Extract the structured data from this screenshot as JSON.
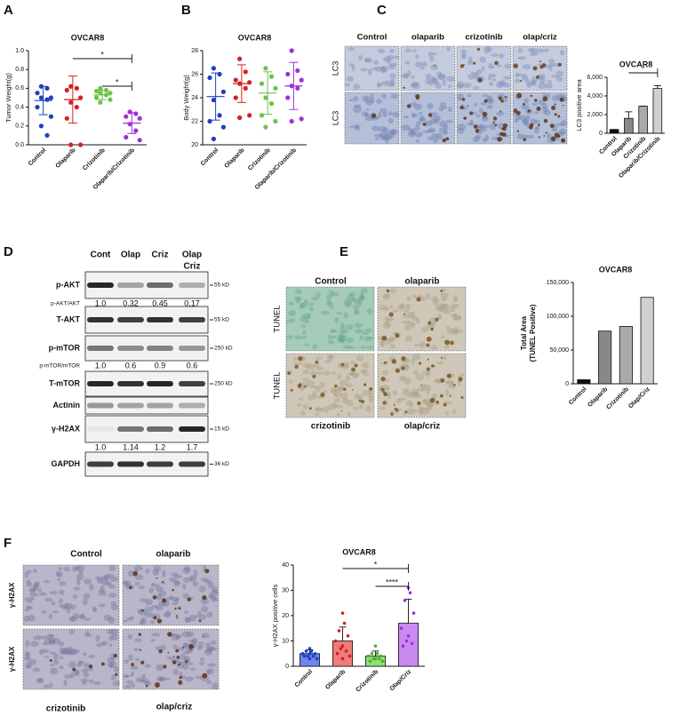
{
  "figure": {
    "panel_letters": [
      "A",
      "B",
      "C",
      "D",
      "E",
      "F"
    ]
  },
  "chart_data": [
    {
      "type": "dot",
      "title": "OVCAR8",
      "y_label": "Tumor Weight(g)",
      "categories": [
        "Control",
        "Olaparib",
        "Crizotinib",
        "Olaparib/Crizotinib"
      ],
      "groups": [
        {
          "color": "#1f3fbf",
          "points": [
            0.62,
            0.6,
            0.55,
            0.5,
            0.5,
            0.48,
            0.4,
            0.3,
            0.2,
            0.1
          ],
          "mean": 0.47,
          "sd": 0.15
        },
        {
          "color": "#d42020",
          "points": [
            0.62,
            0.6,
            0.58,
            0.5,
            0.45,
            0.4,
            0.28,
            0.0,
            0.0
          ],
          "mean": 0.48,
          "sd": 0.25
        },
        {
          "color": "#6cc24a",
          "points": [
            0.6,
            0.58,
            0.57,
            0.55,
            0.55,
            0.53,
            0.5,
            0.48,
            0.45
          ],
          "mean": 0.53,
          "sd": 0.05
        },
        {
          "color": "#a12fd6",
          "points": [
            0.35,
            0.33,
            0.3,
            0.28,
            0.22,
            0.15,
            0.08,
            0.05
          ],
          "mean": 0.23,
          "sd": 0.11
        }
      ],
      "ylim": [
        0,
        1.0
      ],
      "yticks": [
        {
          "value": 0,
          "label": "0.0"
        },
        0.2,
        0.4,
        0.6,
        0.8,
        {
          "value": 1.0,
          "label": "1.0"
        }
      ],
      "annotations": [
        "*",
        "*"
      ]
    },
    {
      "type": "dot",
      "title": "OVCAR8",
      "y_label": "Body Weight(g)",
      "categories": [
        "Control",
        "Olaparib",
        "Crizotinib",
        "Olaparib/Crizotinib"
      ],
      "groups": [
        {
          "color": "#1f3fbf",
          "points": [
            26.5,
            26,
            25.7,
            24.5,
            23.8,
            22.5,
            22,
            21.5,
            20.5
          ],
          "mean": 24.1,
          "sd": 2
        },
        {
          "color": "#d42020",
          "points": [
            27.3,
            26.2,
            25.5,
            25.3,
            25.2,
            24.8,
            24,
            22.5,
            22.3
          ],
          "mean": 25.2,
          "sd": 1.6
        },
        {
          "color": "#6cc24a",
          "points": [
            26.5,
            25.8,
            25.2,
            24.8,
            24,
            23.5,
            22.5,
            22,
            21.5
          ],
          "mean": 24.4,
          "sd": 1.8
        },
        {
          "color": "#a12fd6",
          "points": [
            28,
            26.3,
            26,
            25.5,
            25,
            24.8,
            24,
            22.2,
            22
          ],
          "mean": 25,
          "sd": 2
        }
      ],
      "ylim": [
        20,
        28
      ],
      "yticks": [
        20,
        22,
        24,
        26,
        28
      ],
      "annotations": []
    },
    {
      "type": "bar",
      "title": "OVCAR8",
      "y_label": "LC3 positive area",
      "categories": [
        "Control",
        "Olaparib",
        "Crizotinib",
        "Olaparib/Crizotinib"
      ],
      "values": [
        400,
        1600,
        2900,
        4800
      ],
      "errors": [
        0,
        700,
        0,
        300
      ],
      "colors": [
        "#111111",
        "#888888",
        "#aaaaaa",
        "#d0d0d0"
      ],
      "ylim": [
        0,
        6000
      ],
      "yticks": [
        0,
        {
          "value": 2000,
          "label": "2,000"
        },
        {
          "value": 4000,
          "label": "4,000"
        },
        {
          "value": 6000,
          "label": "6,000"
        }
      ],
      "annotations": [
        "*"
      ],
      "annotation_color": "#e03030"
    },
    {
      "type": "bar",
      "title": "OVCAR8",
      "y_label": [
        "Total Area",
        "(TUNEL Positive)"
      ],
      "categories": [
        "Control",
        "Olaparib",
        "Crizotinib",
        "Olap/Criz"
      ],
      "values": [
        6000,
        78000,
        85000,
        128000
      ],
      "colors": [
        "#111111",
        "#888888",
        "#aaaaaa",
        "#d0d0d0"
      ],
      "ylim": [
        0,
        150000
      ],
      "yticks": [
        0,
        {
          "value": 50000,
          "label": "50,000"
        },
        {
          "value": 100000,
          "label": "100,000"
        },
        {
          "value": 150000,
          "label": "150,000"
        }
      ],
      "annotations": []
    },
    {
      "type": "bar",
      "title": "OVCAR8",
      "y_label": "γ-H2AX positive cells",
      "categories": [
        "Control",
        "Olaparib",
        "Crizotinib",
        "Olap/Criz"
      ],
      "values": [
        5,
        10,
        4,
        17
      ],
      "errors": [
        1.5,
        5.5,
        2,
        9.5
      ],
      "colors": [
        "#6f86f0",
        "#f07b7b",
        "#8fe07a",
        "#c98bf0"
      ],
      "point_colors": [
        "#1f3fbf",
        "#d42020",
        "#4caf30",
        "#a12fd6"
      ],
      "points": [
        [
          7,
          6,
          6,
          5,
          5,
          5,
          4,
          4,
          4,
          3,
          3
        ],
        [
          21,
          17,
          14,
          12,
          10,
          8,
          7,
          6,
          5,
          4,
          3
        ],
        [
          8,
          5,
          5,
          4,
          4,
          3,
          3,
          3,
          2,
          2
        ],
        [
          31,
          29,
          26,
          21,
          15,
          12,
          10,
          9,
          8
        ]
      ],
      "ylim": [
        0,
        40
      ],
      "yticks": [
        0,
        10,
        20,
        30,
        40
      ],
      "annotations": [
        "*",
        "****"
      ]
    }
  ],
  "ihc": {
    "C": {
      "column_labels": [
        "Control",
        "olaparib",
        "crizotinib",
        "olap/criz"
      ],
      "row_labels": [
        "LC3",
        "LC3"
      ]
    },
    "E": {
      "labels": [
        "Control",
        "olaparib",
        "crizotinib",
        "olap/criz"
      ],
      "row_labels": [
        "TUNEL",
        "TUNEL"
      ]
    },
    "F": {
      "labels": [
        "Control",
        "olaparib",
        "crizotinib",
        "olap/criz"
      ],
      "row_labels": [
        "γ-H2AX",
        "γ-H2AX"
      ]
    }
  },
  "blot": {
    "lanes": [
      "Cont",
      "Olap",
      "Criz",
      [
        "Olap",
        "Criz"
      ]
    ],
    "rows": [
      {
        "name": "p-AKT",
        "size": "55 kD",
        "ratio_label": "p-AKT/AKT",
        "ratios": [
          "1.0",
          "0.32",
          "0.45",
          "0.17"
        ]
      },
      {
        "name": "T-AKT",
        "size": "55 kD"
      },
      {
        "name": "p-mTOR",
        "size": "250 kD",
        "ratio_label": "p-mTOR/mTOR",
        "ratios": [
          "1.0",
          "0.6",
          "0.9",
          "0.6"
        ]
      },
      {
        "name": "T-mTOR",
        "size": "250 kD"
      },
      {
        "name": "Actinin"
      },
      {
        "name": "γ-H2AX",
        "size": "15 kD",
        "ratios": [
          "1.0",
          "1.14",
          "1.2",
          "1.7"
        ]
      },
      {
        "name": "GAPDH",
        "size": "36 kD"
      }
    ]
  }
}
